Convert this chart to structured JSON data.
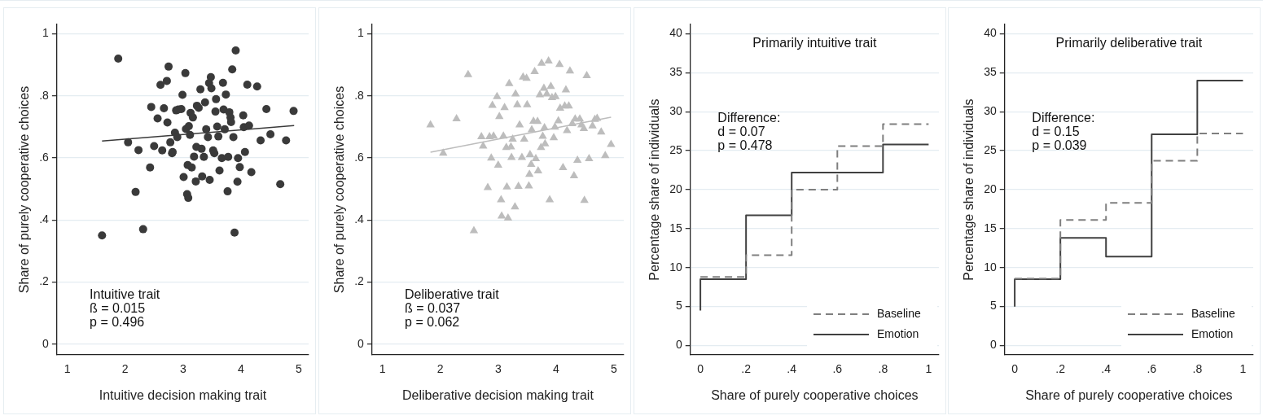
{
  "chart_data": [
    {
      "type": "scatter",
      "xlabel": "Intuitive decision making trait",
      "ylabel": "Share of purely cooperative choices",
      "xlim": [
        0.82,
        5.17
      ],
      "ylim": [
        -0.035,
        1.03
      ],
      "xticks": [
        1,
        2,
        3,
        4,
        5
      ],
      "yticks": [
        0,
        {
          "value": 0.2,
          "label": ".2"
        },
        {
          "value": 0.4,
          "label": ".4"
        },
        {
          "value": 0.6,
          "label": ".6"
        },
        {
          "value": 0.8,
          "label": ".8"
        },
        1
      ],
      "grid": "y",
      "annotations": [
        "Intuitive trait",
        "ß = 0.015",
        "p = 0.496"
      ],
      "series": [
        {
          "color": "#3a3a3a",
          "marker": "circle",
          "x": [
            1.6,
            1.88,
            2.05,
            2.18,
            2.23,
            2.31,
            2.43,
            2.45,
            2.5,
            2.56,
            2.61,
            2.64,
            2.67,
            2.72,
            2.73,
            2.75,
            2.78,
            2.81,
            2.82,
            2.86,
            2.88,
            2.9,
            2.92,
            2.97,
            2.99,
            3.01,
            3.04,
            3.05,
            3.07,
            3.08,
            3.09,
            3.1,
            3.12,
            3.13,
            3.15,
            3.17,
            3.19,
            3.22,
            3.23,
            3.24,
            3.27,
            3.3,
            3.32,
            3.33,
            3.36,
            3.38,
            3.4,
            3.43,
            3.45,
            3.46,
            3.48,
            3.49,
            3.52,
            3.54,
            3.56,
            3.57,
            3.59,
            3.61,
            3.63,
            3.67,
            3.69,
            3.7,
            3.72,
            3.74,
            3.77,
            3.78,
            3.8,
            3.82,
            3.83,
            3.85,
            3.87,
            3.89,
            3.91,
            3.94,
            3.95,
            3.98,
            4.04,
            4.05,
            4.07,
            4.11,
            4.14,
            4.18,
            4.28,
            4.34,
            4.44,
            4.51,
            4.68,
            4.78,
            4.91
          ],
          "values": [
            0.35,
            0.92,
            0.65,
            0.49,
            0.625,
            0.37,
            0.569,
            0.764,
            0.638,
            0.727,
            0.835,
            0.624,
            0.76,
            0.848,
            0.714,
            0.894,
            0.65,
            0.615,
            0.619,
            0.681,
            0.753,
            0.667,
            0.756,
            0.757,
            0.803,
            0.538,
            0.873,
            0.693,
            0.483,
            0.577,
            0.471,
            0.702,
            0.674,
            0.745,
            0.569,
            0.73,
            0.604,
            0.524,
            0.635,
            0.768,
            0.761,
            0.821,
            0.629,
            0.54,
            0.603,
            0.779,
            0.692,
            0.667,
            0.841,
            0.529,
            0.86,
            0.824,
            0.624,
            0.615,
            0.749,
            0.789,
            0.701,
            0.669,
            0.559,
            0.599,
            0.842,
            0.756,
            0.692,
            0.804,
            0.492,
            0.603,
            0.747,
            0.73,
            0.715,
            0.885,
            0.667,
            0.359,
            0.946,
            0.523,
            0.599,
            0.57,
            0.737,
            0.699,
            0.619,
            0.836,
            0.704,
            0.554,
            0.83,
            0.656,
            0.757,
            0.676,
            0.515,
            0.656,
            0.751
          ]
        },
        {
          "type": "line",
          "color": "#3a3a3a",
          "marker": "none",
          "x": [
            1.6,
            4.92
          ],
          "values": [
            0.654,
            0.704
          ]
        }
      ]
    },
    {
      "type": "scatter",
      "xlabel": "Deliberative decision making trait",
      "ylabel": "Share of purely cooperative choices",
      "xlim": [
        0.82,
        5.17
      ],
      "ylim": [
        -0.035,
        1.03
      ],
      "xticks": [
        1,
        2,
        3,
        4,
        5
      ],
      "yticks": [
        0,
        {
          "value": 0.2,
          "label": ".2"
        },
        {
          "value": 0.4,
          "label": ".4"
        },
        {
          "value": 0.6,
          "label": ".6"
        },
        {
          "value": 0.8,
          "label": ".8"
        },
        1
      ],
      "grid": "y",
      "annotations": [
        "Deliberative trait",
        "ß = 0.037",
        "p = 0.062"
      ],
      "series": [
        {
          "color": "#bdbdbd",
          "marker": "triangle",
          "x": [
            1.83,
            2.05,
            2.28,
            2.48,
            2.58,
            2.71,
            2.74,
            2.82,
            2.85,
            2.88,
            2.9,
            2.92,
            2.98,
            3.0,
            3.02,
            3.05,
            3.06,
            3.09,
            3.11,
            3.14,
            3.15,
            3.17,
            3.19,
            3.22,
            3.23,
            3.25,
            3.29,
            3.3,
            3.33,
            3.35,
            3.37,
            3.41,
            3.43,
            3.45,
            3.49,
            3.5,
            3.53,
            3.54,
            3.55,
            3.57,
            3.58,
            3.61,
            3.63,
            3.65,
            3.68,
            3.69,
            3.72,
            3.74,
            3.75,
            3.77,
            3.79,
            3.8,
            3.81,
            3.84,
            3.87,
            3.89,
            3.91,
            3.93,
            3.96,
            3.98,
            3.99,
            4.04,
            4.06,
            4.07,
            4.12,
            4.15,
            4.17,
            4.19,
            4.22,
            4.24,
            4.28,
            4.31,
            4.33,
            4.37,
            4.41,
            4.44,
            4.48,
            4.49,
            4.53,
            4.57,
            4.63,
            4.67,
            4.71,
            4.78,
            4.85,
            4.95
          ],
          "values": [
            0.706,
            0.615,
            0.726,
            0.868,
            0.365,
            0.668,
            0.638,
            0.504,
            0.668,
            0.599,
            0.769,
            0.67,
            0.797,
            0.576,
            0.733,
            0.465,
            0.412,
            0.67,
            0.762,
            0.633,
            0.506,
            0.406,
            0.839,
            0.635,
            0.601,
            0.66,
            0.442,
            0.806,
            0.771,
            0.508,
            0.706,
            0.601,
            0.86,
            0.66,
            0.856,
            0.771,
            0.509,
            0.547,
            0.61,
            0.579,
            0.69,
            0.718,
            0.878,
            0.597,
            0.717,
            0.558,
            0.803,
            0.633,
            0.905,
            0.669,
            0.824,
            0.697,
            0.645,
            0.806,
            0.912,
            0.465,
            0.83,
            0.794,
            0.665,
            0.699,
            0.797,
            0.719,
            0.901,
            0.76,
            0.568,
            0.767,
            0.819,
            0.688,
            0.767,
            0.88,
            0.71,
            0.542,
            0.725,
            0.592,
            0.725,
            0.706,
            0.694,
            0.463,
            0.865,
            0.597,
            0.703,
            0.724,
            0.727,
            0.683,
            0.607,
            0.643
          ]
        },
        {
          "type": "line",
          "color": "#bdbdbd",
          "marker": "none",
          "x": [
            1.83,
            4.95
          ],
          "values": [
            0.618,
            0.731
          ]
        }
      ]
    },
    {
      "type": "step",
      "title": "Primarily intuitive trait",
      "xlabel": "Share of purely cooperative choices",
      "ylabel": "Percentage share of individuals",
      "xlim": [
        -0.044,
        1.045
      ],
      "ylim": [
        -1.2,
        41.2
      ],
      "xticks": [
        0,
        {
          "value": 0.2,
          "label": ".2"
        },
        {
          "value": 0.4,
          "label": ".4"
        },
        {
          "value": 0.6,
          "label": ".6"
        },
        {
          "value": 0.8,
          "label": ".8"
        },
        1
      ],
      "yticks": [
        0,
        5,
        10,
        15,
        20,
        25,
        30,
        35,
        40
      ],
      "grid": "y",
      "legend": "bottom right",
      "annotations": [
        "Difference:",
        "d = 0.07",
        "p = 0.478"
      ],
      "series": [
        {
          "name": "Baseline",
          "color": "#7f7f7f",
          "line_style": "dashed",
          "x": [
            0,
            0.2,
            0.4,
            0.6,
            0.8,
            1
          ],
          "values": [
            8.8,
            11.6,
            20.0,
            25.6,
            28.4,
            28.4
          ]
        },
        {
          "name": "Emotion",
          "color": "#404040",
          "line_style": "solid",
          "x": [
            0,
            0,
            0.2,
            0.4,
            0.6,
            0.8,
            1
          ],
          "values": [
            4.5,
            8.5,
            16.7,
            22.2,
            22.2,
            25.8,
            25.8
          ]
        }
      ]
    },
    {
      "type": "step",
      "title": "Primarily deliberative trait",
      "xlabel": "Share of purely cooperative choices",
      "ylabel": "Percentage share of individuals",
      "xlim": [
        -0.044,
        1.045
      ],
      "ylim": [
        -1.2,
        41.2
      ],
      "xticks": [
        0,
        {
          "value": 0.2,
          "label": ".2"
        },
        {
          "value": 0.4,
          "label": ".4"
        },
        {
          "value": 0.6,
          "label": ".6"
        },
        {
          "value": 0.8,
          "label": ".8"
        },
        1
      ],
      "yticks": [
        0,
        5,
        10,
        15,
        20,
        25,
        30,
        35,
        40
      ],
      "grid": "y",
      "legend": "bottom right",
      "annotations": [
        "Difference:",
        "d = 0.15",
        "p = 0.039"
      ],
      "series": [
        {
          "name": "Baseline",
          "color": "#7f7f7f",
          "line_style": "dashed",
          "x": [
            0,
            0.2,
            0.4,
            0.6,
            0.8,
            1
          ],
          "values": [
            8.6,
            16.1,
            18.3,
            23.7,
            27.2,
            27.2
          ]
        },
        {
          "name": "Emotion",
          "color": "#404040",
          "line_style": "solid",
          "x": [
            0,
            0,
            0.2,
            0.4,
            0.6,
            0.8,
            1
          ],
          "values": [
            5.0,
            8.5,
            13.8,
            11.4,
            27.1,
            34.0,
            34.0
          ]
        }
      ]
    }
  ]
}
